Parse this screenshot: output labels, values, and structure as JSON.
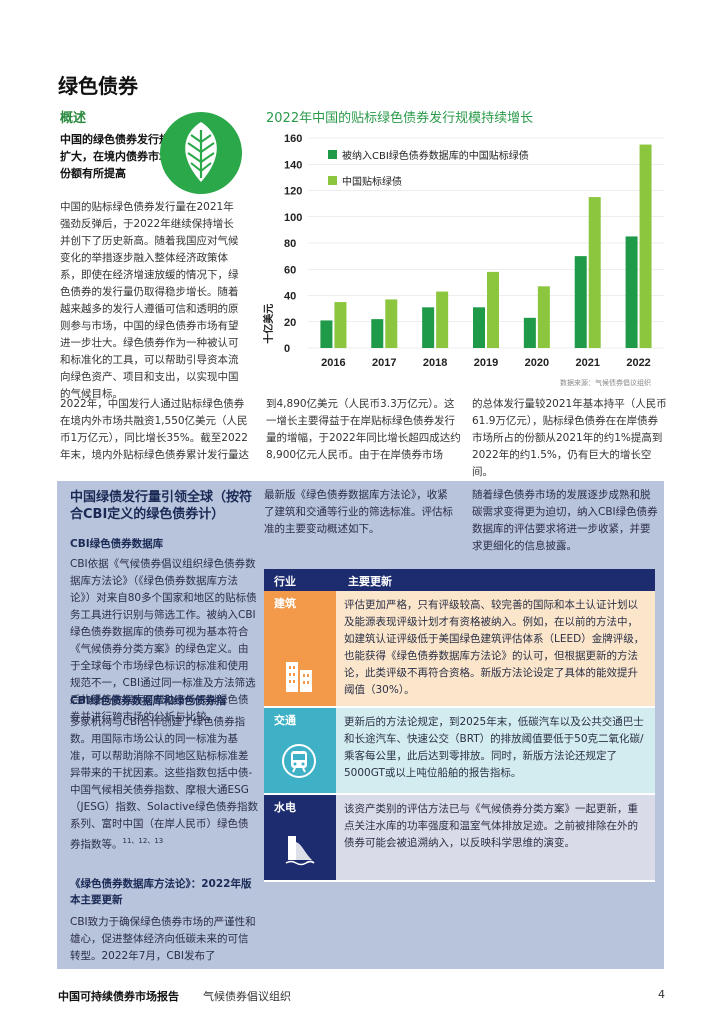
{
  "page": {
    "title": "绿色债券",
    "section_heading": "概述",
    "lead_text": "中国的绿色债券发行规模持续扩大，在境内债券市场所占的份额有所提高",
    "col1_paragraph": "中国的贴标绿色债券发行量在2021年强劲反弹后，于2022年继续保持增长并创下了历史新高。随着我国应对气候变化的举措逐步融入整体经济政策体系，即使在经济增速放缓的情况下，绿色债券的发行量仍取得稳步增长。随着越来越多的发行人遵循可信和透明的原则参与市场，中国的绿色债券市场有望进一步壮大。绿色债券作为一种被认可和标准化的工具，可以帮助引导资本流向绿色资产、项目和支出，以实现中国的气候目标。",
    "col1_bottom": "2022年，中国发行人通过贴标绿色债券在境内外市场共融资1,550亿美元（人民币1万亿元），同比增长35%。截至2022年末，境内外贴标绿色债券累计发行量达",
    "col2_bottom": "到4,890亿美元（人民币3.3万亿元）。这一增长主要得益于在岸贴标绿色债券发行量的增幅，于2022年同比增长超四成达约8,900亿元人民币。由于在岸债券市场",
    "col3_bottom": "的总体发行量较2021年基本持平（人民币61.9万亿元），贴标绿色债券在在岸债券市场所占的份额从2021年的约1%提高到2022年的约1.5%，仍有巨大的增长空间。"
  },
  "chart_data": {
    "type": "bar",
    "title": "2022年中国的贴标绿色债券发行规模持续增长",
    "ylabel": "十亿美元",
    "categories": [
      "2016",
      "2017",
      "2018",
      "2019",
      "2020",
      "2021",
      "2022"
    ],
    "ylim": [
      0,
      160
    ],
    "yticks": [
      "0",
      "20",
      "40",
      "60",
      "80",
      "100",
      "120",
      "140",
      "160"
    ],
    "series": [
      {
        "name": "被纳入CBI绿色债券数据库的中国贴标绿债",
        "color": "#1f9a48",
        "values": [
          21,
          22,
          31,
          31,
          23,
          70,
          85
        ]
      },
      {
        "name": "中国贴标绿债",
        "color": "#8cc63f",
        "values": [
          35,
          37,
          43,
          58,
          47,
          115,
          155
        ]
      }
    ],
    "legend_position": "top-left",
    "source": "数据来源：气候债券倡议组织"
  },
  "box": {
    "title": "中国绿债发行量引领全球（按符合CBI定义的绿色债券计）",
    "sub1": "CBI绿色债券数据库",
    "p1": "CBI依据《气候债券倡议组织绿色债券数据库方法论》（《绿色债券数据库方法论》）对来自80多个国家和地区的贴标债务工具进行识别与筛选工作。被纳入CBI绿色债券数据库的债券可视为基本符合《气候债券分类方案》的绿色定义。由于全球每个市场绿色标识的标准和使用规范不一，CBI通过同一标准及方法筛选后的绿债数据库可帮助市场识别绿色债券并进行跨市场的分析与比较。",
    "sub2": "CBI绿色债券数据库和绿色债券指",
    "p2": "多家机构与CBI合作创建了绿色债券指数。用国际市场公认的同一标准为基准，可以帮助消除不同地区贴标标准差异带来的干扰因素。这些指数包括中债-中国气候相关债券指数、摩根大通ESG（JESG）指数、Solactive绿色债券指数系列、富时中国（在岸人民币）绿色债券指数等。",
    "notes": "11、12、13",
    "sub3": "《绿色债券数据库方法论》：2022年版本主要更新",
    "p3": "CBI致力于确保绿色债券市场的严谨性和雄心，促进整体经济向低碳未来的可信转型。2022年7月，CBI发布了",
    "col2_top": "最新版《绿色债券数据库方法论》，收紧了建筑和交通等行业的筛选标准。评估标准的主要变动概述如下。",
    "col3_top": "随着绿色债券市场的发展逐步成熟和脱碳需求变得更为迫切，纳入CBI绿色债券数据库的评估要求将进一步收紧，并要求更细化的信息披露。"
  },
  "table": {
    "header_sector": "行业",
    "header_update": "主要更新",
    "rows": [
      {
        "sector": "建筑",
        "icon": "building-icon",
        "color": "#f2994a",
        "bg": "#fbe6cc",
        "text": "评估更加严格，只有评级较高、较完善的国际和本土认证计划以及能源表现评级计划才有资格被纳入。例如，在以前的方法中，如建筑认证评级低于美国绿色建筑评估体系（LEED）金牌评级，也能获得《绿色债券数据库方法论》的认可，但根据更新的方法论，此类评级不再符合资格。新版方法论设定了具体的能效提升阈值（30%）。"
      },
      {
        "sector": "交通",
        "icon": "train-icon",
        "color": "#3fb1c6",
        "bg": "#d3ecef",
        "text": "更新后的方法论规定，到2025年末，低碳汽车以及公共交通巴士和长途汽车、快速公交（BRT）的排放阈值要低于50克二氧化碳/乘客每公里，此后达到零排放。同时，新版方法论还规定了5000GT或以上吨位船舶的报告指标。"
      },
      {
        "sector": "水电",
        "icon": "dam-icon",
        "color": "#1d2c6e",
        "bg": "#d9dce8",
        "text": "该资产类别的评估方法已与《气候债券分类方案》一起更新，重点关注水库的功率强度和温室气体排放足迹。之前被排除在外的债券可能会被追溯纳入，以反映科学思维的演变。"
      }
    ]
  },
  "footer": {
    "report_title": "中国可持续债券市场报告",
    "org": "气候债券倡议组织",
    "page_number": "4"
  }
}
